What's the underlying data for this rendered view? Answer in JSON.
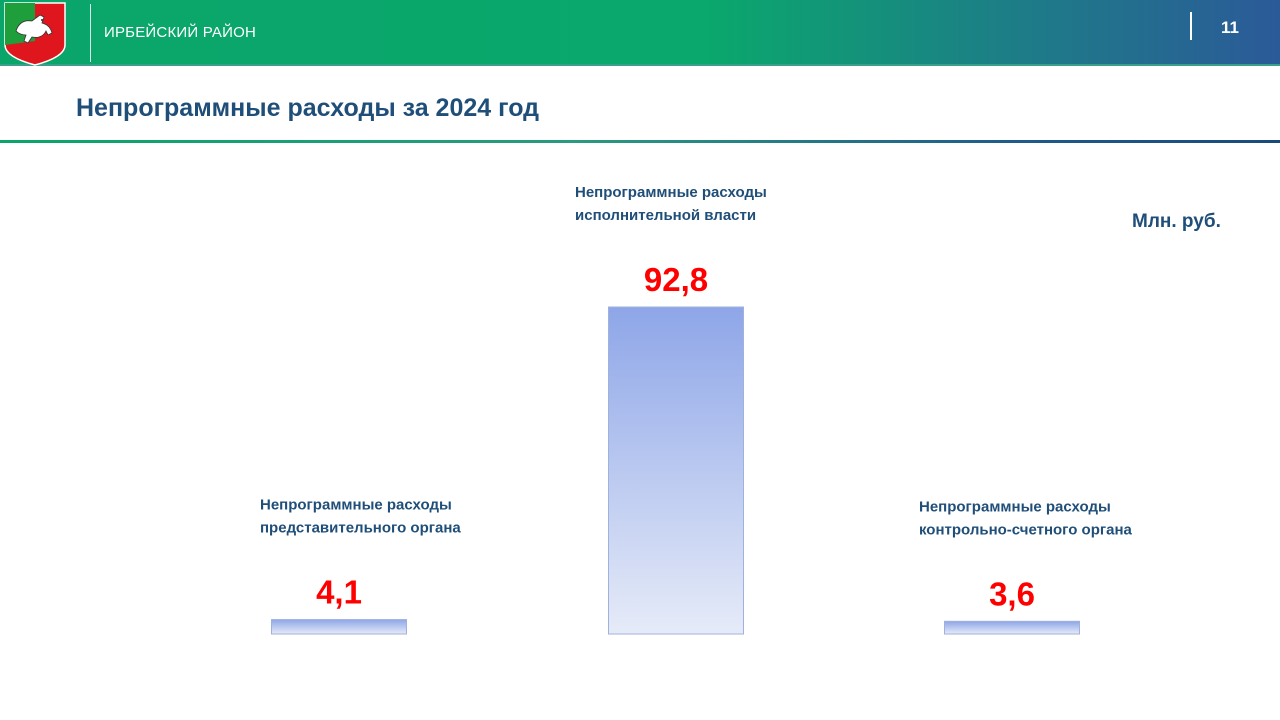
{
  "header": {
    "district": "ИРБЕЙСКИЙ РАЙОН",
    "page_number": "11",
    "logo_icon": "coat-of-arms-icon"
  },
  "title": "Непрограммные расходы за 2024 год",
  "unit": "Млн. руб.",
  "colors": {
    "bar_top": "#8ea6e8",
    "bar_bottom": "#e6ebf8",
    "bar_border": "#9fb1dd",
    "value_label": "#ff0000",
    "text": "#1f4e79"
  },
  "chart_data": {
    "type": "bar",
    "categories": [
      [
        "Непрограммные расходы",
        "представительного органа"
      ],
      [
        "Непрограммные расходы",
        "исполнительной власти"
      ],
      [
        "Непрограммные расходы",
        "контрольно-счетного органа"
      ]
    ],
    "values": [
      4.1,
      92.8,
      3.6
    ],
    "value_labels": [
      "4,1",
      "92,8",
      "3,6"
    ],
    "ylim": [
      0,
      100
    ],
    "grid": false,
    "legend": "none"
  }
}
